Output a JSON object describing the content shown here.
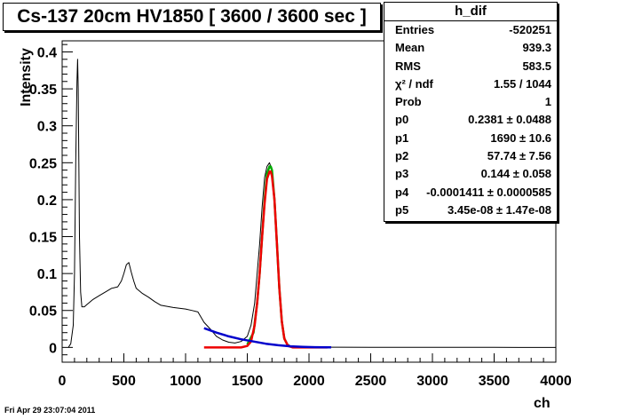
{
  "chart_data": {
    "type": "line",
    "title": "Cs-137 20cm HV1850 [ 3600 / 3600 sec ]",
    "xlabel": "ch",
    "ylabel": "Intensity",
    "xlim": [
      0,
      4000
    ],
    "ylim": [
      -0.02,
      0.415
    ],
    "x_ticks": [
      0,
      500,
      1000,
      1500,
      2000,
      2500,
      3000,
      3500,
      4000
    ],
    "y_ticks": [
      0,
      0.05,
      0.1,
      0.15,
      0.2,
      0.25,
      0.3,
      0.35,
      0.4
    ],
    "x_tick_labels": [
      "0",
      "500",
      "1000",
      "1500",
      "2000",
      "2500",
      "3000",
      "3500",
      "4000"
    ],
    "y_tick_labels": [
      "0",
      "0.05",
      "0.1",
      "0.15",
      "0.2",
      "0.25",
      "0.3",
      "0.35",
      "0.4"
    ],
    "series": [
      {
        "color": "#000000",
        "x": [
          50,
          70,
          90,
          100,
          110,
          120,
          125,
          130,
          135,
          140,
          150,
          160,
          170,
          180,
          200,
          250,
          300,
          350,
          400,
          450,
          480,
          500,
          520,
          540,
          560,
          580,
          600,
          650,
          700,
          750,
          800,
          900,
          1000,
          1050,
          1100,
          1150,
          1200,
          1250,
          1300,
          1350,
          1400,
          1450,
          1500,
          1530,
          1560,
          1580,
          1600,
          1620,
          1640,
          1660,
          1680,
          1690,
          1700,
          1720,
          1740,
          1760,
          1780,
          1800,
          1820,
          1850,
          1900,
          2000,
          2200,
          2500,
          3000,
          3500,
          3700,
          4000
        ],
        "y": [
          0,
          0.005,
          0.03,
          0.1,
          0.25,
          0.36,
          0.39,
          0.35,
          0.25,
          0.15,
          0.075,
          0.055,
          0.055,
          0.055,
          0.058,
          0.065,
          0.07,
          0.075,
          0.08,
          0.082,
          0.09,
          0.1,
          0.112,
          0.115,
          0.102,
          0.09,
          0.08,
          0.073,
          0.068,
          0.062,
          0.057,
          0.054,
          0.052,
          0.05,
          0.048,
          0.034,
          0.025,
          0.015,
          0.01,
          0.007,
          0.006,
          0.008,
          0.015,
          0.03,
          0.06,
          0.1,
          0.14,
          0.19,
          0.23,
          0.245,
          0.25,
          0.245,
          0.24,
          0.2,
          0.14,
          0.08,
          0.04,
          0.015,
          0.005,
          0.002,
          0.001,
          0.0005,
          0.0003,
          0.0002,
          0.0001,
          0.0001,
          0,
          0
        ]
      },
      {
        "color": "#00aa00",
        "x": [
          1500,
          1550,
          1580,
          1600,
          1620,
          1640,
          1660,
          1680,
          1690,
          1700,
          1720,
          1740,
          1760,
          1780,
          1800,
          1830
        ],
        "y": [
          0.004,
          0.02,
          0.06,
          0.1,
          0.15,
          0.2,
          0.235,
          0.245,
          0.245,
          0.24,
          0.2,
          0.14,
          0.08,
          0.035,
          0.012,
          0.002
        ]
      },
      {
        "color": "#ee0000",
        "x": [
          1150,
          1300,
          1450,
          1500,
          1530,
          1560,
          1580,
          1600,
          1620,
          1640,
          1660,
          1680,
          1690,
          1700,
          1720,
          1740,
          1760,
          1780,
          1800,
          1830,
          1870,
          2000,
          2150
        ],
        "y": [
          0,
          0,
          0,
          0.002,
          0.008,
          0.03,
          0.06,
          0.1,
          0.15,
          0.195,
          0.228,
          0.238,
          0.238,
          0.232,
          0.2,
          0.14,
          0.08,
          0.035,
          0.012,
          0.002,
          0,
          0,
          0
        ]
      },
      {
        "color": "#0000cc",
        "x": [
          1150,
          1250,
          1350,
          1450,
          1550,
          1650,
          1750,
          1850,
          1950,
          2050,
          2150,
          2180
        ],
        "y": [
          0.026,
          0.02,
          0.015,
          0.011,
          0.008,
          0.005,
          0.003,
          0.0015,
          0.0008,
          0.0003,
          0.0002,
          0.0002
        ]
      }
    ]
  },
  "stats": {
    "name": "h_dif",
    "rows": [
      {
        "label": "Entries",
        "value": "-520251"
      },
      {
        "label": "Mean",
        "value": "939.3"
      },
      {
        "label": "RMS",
        "value": "583.5"
      },
      {
        "label": "χ² / ndf",
        "value": "1.55 / 1044"
      },
      {
        "label": "Prob",
        "value": "1"
      },
      {
        "label": "p0",
        "value": "0.2381 ± 0.0488"
      },
      {
        "label": "p1",
        "value": "1690 ± 10.6"
      },
      {
        "label": "p2",
        "value": "57.74 ± 7.56"
      },
      {
        "label": "p3",
        "value": "0.144 ± 0.058"
      },
      {
        "label": "p4",
        "value": "-0.0001411 ± 0.0000585"
      },
      {
        "label": "p5",
        "value": "3.45e-08 ± 1.47e-08"
      }
    ]
  },
  "footer": "Fri Apr 29 23:07:04 2011"
}
